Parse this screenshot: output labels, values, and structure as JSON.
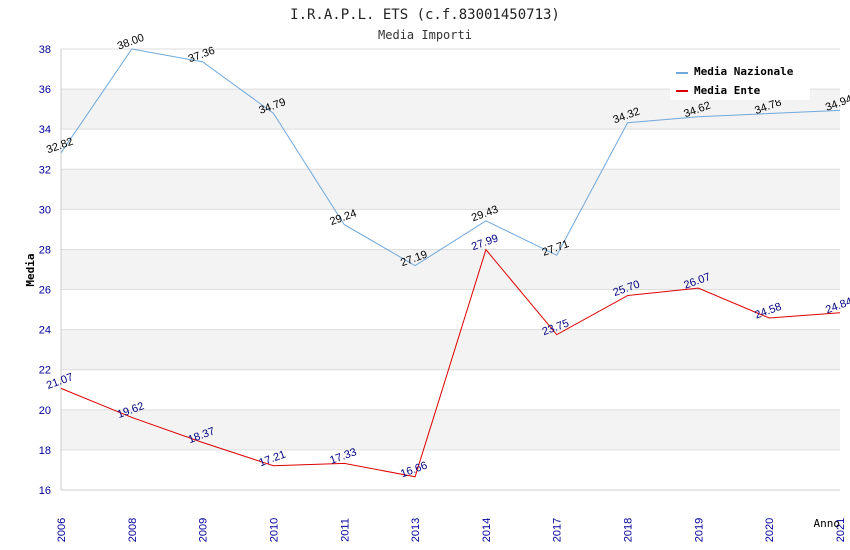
{
  "chart_data": {
    "type": "line",
    "title": "I.R.A.P.L. ETS (c.f.83001450713)",
    "subtitle": "Media Importi",
    "xlabel": "Anno",
    "ylabel": "Media",
    "ylim": [
      16,
      38
    ],
    "yticks": [
      "16",
      "18",
      "20",
      "22",
      "24",
      "26",
      "28",
      "30",
      "32",
      "34",
      "36",
      "38"
    ],
    "categories": [
      "2006",
      "2008",
      "2009",
      "2010",
      "2011",
      "2013",
      "2014",
      "2017",
      "2018",
      "2019",
      "2020",
      "2021"
    ],
    "grid": true,
    "legend_position": "top-right",
    "series": [
      {
        "name": "Media Nazionale",
        "color": "#6fa8dc",
        "label_color": "#000000",
        "values": [
          32.82,
          38.0,
          37.36,
          34.79,
          29.24,
          27.19,
          29.43,
          27.71,
          34.32,
          34.62,
          34.78,
          34.94
        ],
        "labels": [
          "32.82",
          "38.00",
          "37.36",
          "34.79",
          "29.24",
          "27.19",
          "29.43",
          "27.71",
          "34.32",
          "34.62",
          "34.78",
          "34.94"
        ]
      },
      {
        "name": "Media Ente",
        "color": "#dd0000",
        "label_color": "#000080",
        "values": [
          21.07,
          19.62,
          18.37,
          17.21,
          17.33,
          16.66,
          27.99,
          23.75,
          25.7,
          26.07,
          24.58,
          24.84
        ],
        "labels": [
          "21.07",
          "19.62",
          "18.37",
          "17.21",
          "17.33",
          "16.66",
          "27.99",
          "23.75",
          "25.70",
          "26.07",
          "24.58",
          "24.84"
        ]
      }
    ],
    "colors": {
      "axis_tick_text": "#000099",
      "band_shade": "#f3f3f3",
      "grid": "#dddddd",
      "axis": "#cccccc"
    }
  }
}
